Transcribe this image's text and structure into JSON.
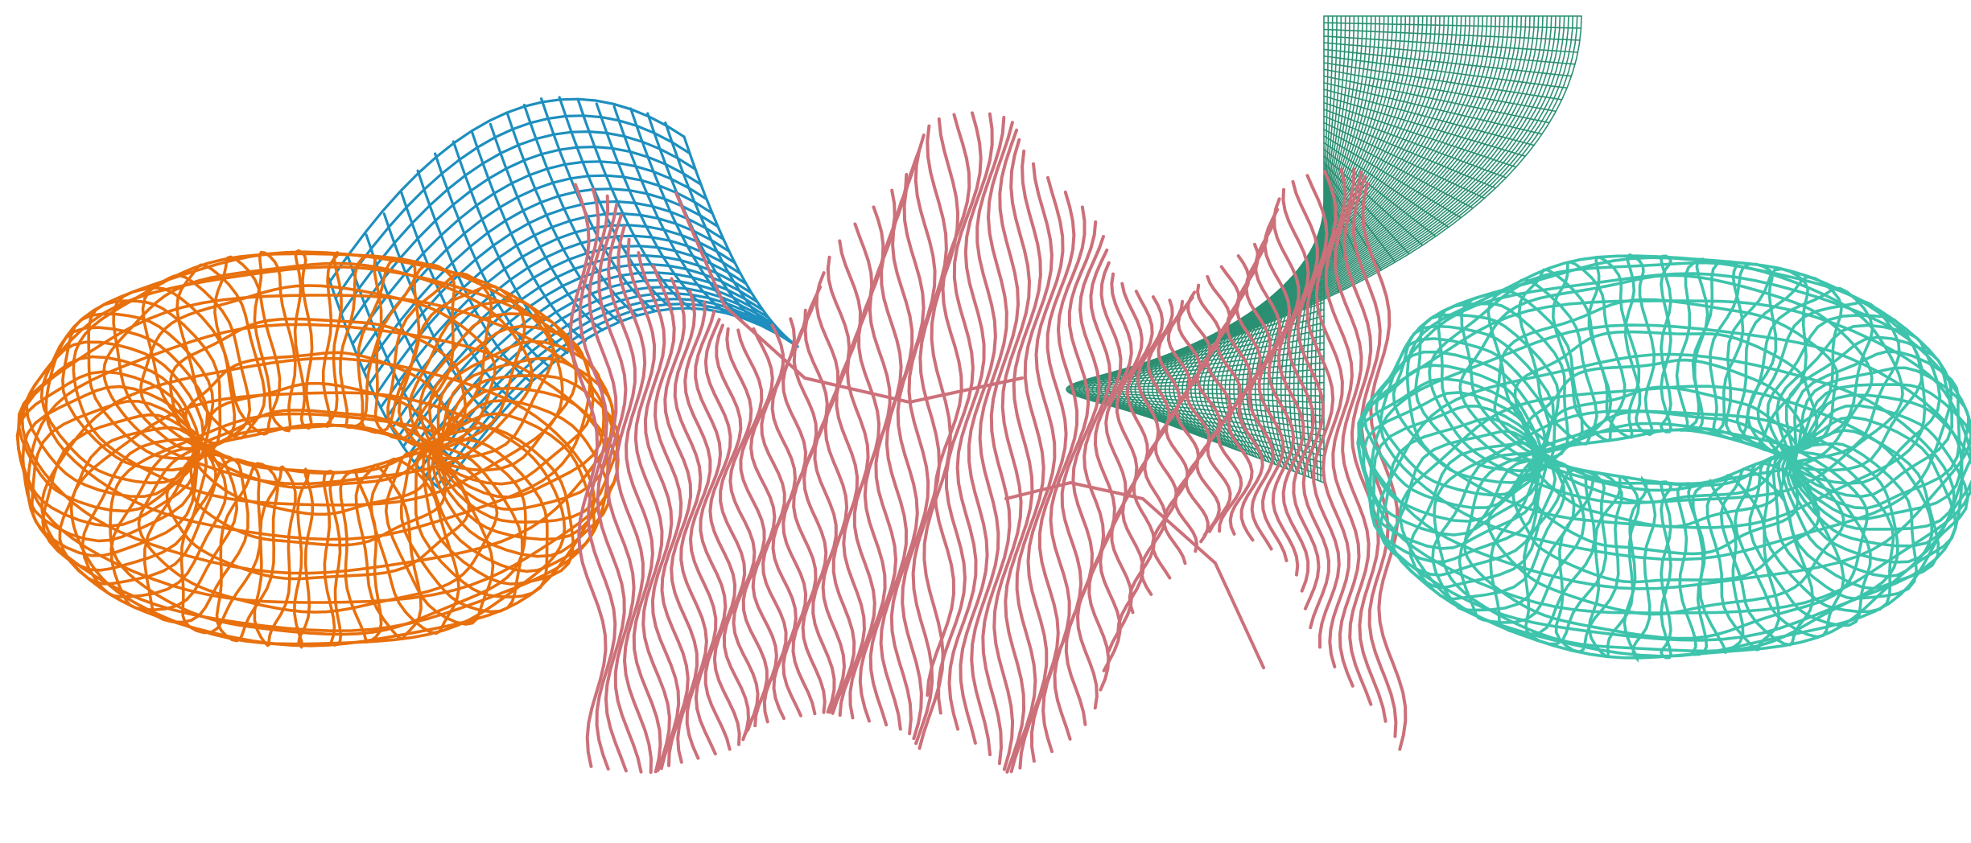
{
  "scene": {
    "background": "#ffffff",
    "objects": [
      {
        "id": "orange-torus",
        "kind": "torus",
        "color": "#e8700d"
      },
      {
        "id": "blue-saddle",
        "kind": "hyperbolic-paraboloid",
        "color": "#1e8fbe"
      },
      {
        "id": "pink-saddle",
        "kind": "monkey-saddle-surface",
        "color": "#cc707a"
      },
      {
        "id": "green-helicoid",
        "kind": "helicoid",
        "color": "#2b8f72"
      },
      {
        "id": "teal-torus",
        "kind": "torus",
        "color": "#3ec4ac"
      }
    ]
  }
}
